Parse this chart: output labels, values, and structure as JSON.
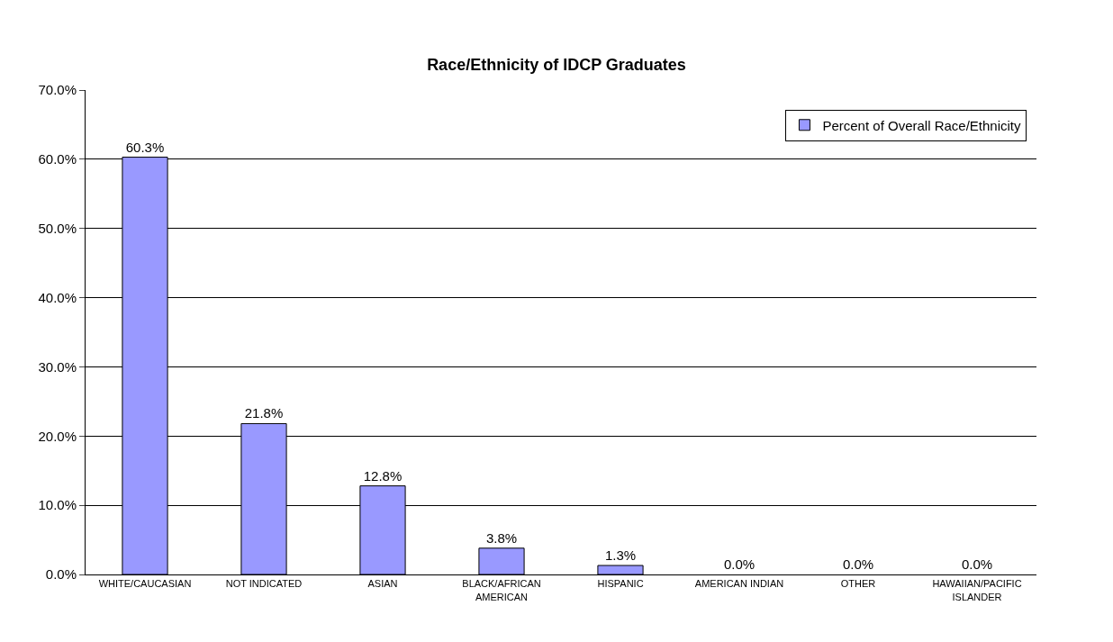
{
  "chart_data": {
    "type": "bar",
    "title": "Race/Ethnicity of IDCP Graduates",
    "categories": [
      "WHITE/CAUCASIAN",
      "NOT INDICATED",
      "ASIAN",
      "BLACK/AFRICAN AMERICAN",
      "HISPANIC",
      "AMERICAN INDIAN",
      "OTHER",
      "HAWAIIAN/PACIFIC ISLANDER"
    ],
    "series": [
      {
        "name": "Percent of Overall Race/Ethnicity",
        "color": "#9999ff",
        "values": [
          60.3,
          21.8,
          12.8,
          3.8,
          1.3,
          0.0,
          0.0,
          0.0
        ],
        "value_labels": [
          "60.3%",
          "21.8%",
          "12.8%",
          "3.8%",
          "1.3%",
          "0.0%",
          "0.0%",
          "0.0%"
        ]
      }
    ],
    "ylim": [
      0,
      70
    ],
    "yticks": [
      {
        "value": 0,
        "label": "0.0%"
      },
      {
        "value": 10,
        "label": "10.0%"
      },
      {
        "value": 20,
        "label": "20.0%"
      },
      {
        "value": 30,
        "label": "30.0%"
      },
      {
        "value": 40,
        "label": "40.0%"
      },
      {
        "value": 50,
        "label": "50.0%"
      },
      {
        "value": 60,
        "label": "60.0%"
      },
      {
        "value": 70,
        "label": "70.0%"
      }
    ],
    "grid": "y",
    "legend": "top right"
  }
}
